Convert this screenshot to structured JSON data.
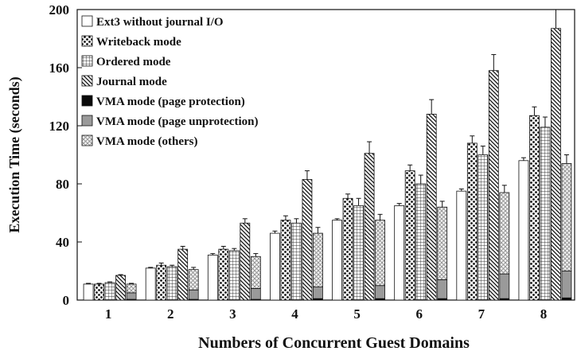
{
  "chart_data": {
    "type": "bar",
    "stacked_last_group": true,
    "title": "",
    "xlabel": "Numbers of Concurrent Guest Domains",
    "ylabel": "Execution Time (seconds)",
    "categories": [
      "1",
      "2",
      "3",
      "4",
      "5",
      "6",
      "7",
      "8"
    ],
    "ylim": [
      0,
      200
    ],
    "yticks": [
      0,
      40,
      80,
      120,
      160,
      200
    ],
    "grid": false,
    "legend_position": "top-left",
    "series": [
      {
        "name": "Ext3 without journal I/O",
        "pattern": "white",
        "values": [
          11,
          22,
          31,
          46,
          55,
          65,
          75,
          96
        ],
        "err": [
          0.5,
          0.5,
          1,
          1.5,
          1,
          1.5,
          1.5,
          2
        ]
      },
      {
        "name": "Writeback mode",
        "pattern": "dots",
        "values": [
          11,
          24,
          35,
          55,
          70,
          89,
          108,
          127
        ],
        "err": [
          0.5,
          1.5,
          2,
          3,
          3,
          4,
          5,
          6
        ]
      },
      {
        "name": "Ordered mode",
        "pattern": "grid",
        "values": [
          12,
          23,
          34,
          53,
          65,
          80,
          100,
          119
        ],
        "err": [
          0.5,
          1,
          1.5,
          3,
          5,
          6,
          6,
          7
        ]
      },
      {
        "name": "Journal mode",
        "pattern": "diagonal",
        "values": [
          17,
          35,
          53,
          83,
          101,
          128,
          158,
          187
        ],
        "err": [
          0.5,
          2,
          3,
          6,
          8,
          10,
          11,
          13
        ]
      },
      {
        "name": "VMA mode (page protection)",
        "pattern": "black",
        "values": [
          0.5,
          0.5,
          0.5,
          1,
          1,
          1,
          1,
          1.5
        ]
      },
      {
        "name": "VMA mode (page unprotection)",
        "pattern": "gray",
        "values": [
          5,
          7,
          8,
          9,
          10,
          14,
          18,
          20
        ]
      },
      {
        "name": "VMA mode (others)",
        "pattern": "crosshatch",
        "values": [
          11,
          21,
          30,
          46,
          55,
          64,
          74,
          94
        ],
        "err": [
          0.5,
          1.5,
          2,
          4,
          4,
          4,
          5,
          6
        ]
      }
    ]
  }
}
